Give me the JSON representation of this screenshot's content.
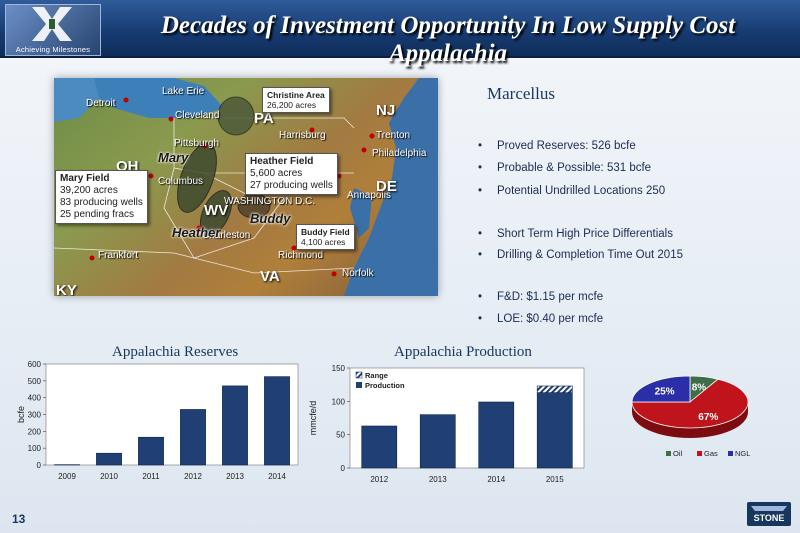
{
  "header": {
    "title": "Decades of Investment Opportunity In Low Supply Cost Appalachia",
    "logo_tagline": "Achieving Milestones"
  },
  "map": {
    "cities": [
      "Detroit",
      "Lake Erie",
      "Cleveland",
      "Pittsburgh",
      "Columbus",
      "Harrisburg",
      "Trenton",
      "Philadelphia",
      "Annapolis",
      "WASHINGTON D.C.",
      "Charleston",
      "Frankfort",
      "Richmond",
      "Norfolk"
    ],
    "states": [
      "PA",
      "NJ",
      "OH",
      "WV",
      "DE",
      "VA",
      "KY"
    ],
    "fields": {
      "mary": "Mary",
      "heather": "Heather",
      "buddy": "Buddy"
    },
    "callouts": {
      "christine": {
        "title": "Christine Area",
        "line1": "26,200 acres"
      },
      "heather": {
        "title": "Heather Field",
        "line1": "5,600 acres",
        "line2": "27 producing wells"
      },
      "mary": {
        "title": "Mary Field",
        "line1": "39,200 acres",
        "line2": "83 producing wells",
        "line3": "25 pending fracs"
      },
      "buddy": {
        "title": "Buddy Field",
        "line1": "4,100 acres"
      }
    }
  },
  "marcellus": {
    "title": "Marcellus",
    "bullets": [
      "Proved Reserves:  526  bcfe",
      "Probable & Possible:  531 bcfe",
      "Potential Undrilled Locations 250",
      "Short Term High Price Differentials",
      "Drilling & Completion Time Out 2015",
      "F&D:  $1.15 per mcfe",
      "LOE:  $0.40  per mcfe"
    ]
  },
  "chart_data": [
    {
      "type": "bar",
      "title": "Appalachia Reserves",
      "ylabel": "bcfe",
      "xlabel": "",
      "categories": [
        "2009",
        "2010",
        "2011",
        "2012",
        "2013",
        "2014"
      ],
      "values": [
        2,
        70,
        165,
        330,
        470,
        525
      ],
      "ylim": [
        0,
        600
      ],
      "yticks": [
        0,
        100,
        200,
        300,
        400,
        500,
        600
      ],
      "grid": false,
      "colors": {
        "bar": "#1f3f75"
      }
    },
    {
      "type": "bar",
      "title": "Appalachia Production",
      "ylabel": "mmcfe/d",
      "xlabel": "",
      "categories": [
        "2012",
        "2013",
        "2014",
        "2015"
      ],
      "series": [
        {
          "name": "Production",
          "values": [
            63,
            80,
            99,
            113
          ]
        },
        {
          "name": "Range",
          "values": [
            0,
            0,
            0,
            10
          ]
        }
      ],
      "ylim": [
        0,
        150
      ],
      "yticks": [
        0,
        50,
        100,
        150
      ],
      "legend": "top-left",
      "grid": false,
      "colors": {
        "production": "#1f3f75",
        "range": "#1f3f75"
      }
    },
    {
      "type": "pie",
      "categories": [
        "Oil",
        "Gas",
        "NGL"
      ],
      "values": [
        8,
        67,
        25
      ],
      "labels": [
        "8%",
        "67%",
        "25%"
      ],
      "legend": "bottom",
      "colors": {
        "Oil": "#3f6d47",
        "Gas": "#c0141c",
        "NGL": "#2a2fa8"
      }
    }
  ],
  "footer": {
    "page_number": "13",
    "company": "STONE"
  }
}
